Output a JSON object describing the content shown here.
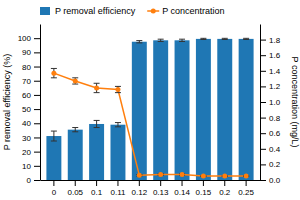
{
  "chart_data": {
    "type": "bar",
    "categories": [
      "0",
      "0.05",
      "0.1",
      "0.11",
      "0.12",
      "0.13",
      "0.14",
      "0.15",
      "0.2",
      "0.25"
    ],
    "series": [
      {
        "name": "P removal efficiency",
        "type": "bar",
        "values": [
          31,
          35.5,
          39.5,
          39,
          97.5,
          98.5,
          98.5,
          99.5,
          99.5,
          99.5
        ],
        "errors": [
          3.5,
          1.5,
          2.5,
          1.5,
          0.8,
          0.8,
          0.8,
          0.4,
          0.4,
          0.4
        ]
      },
      {
        "name": "P concentration",
        "type": "line",
        "axis": "y2",
        "marker": "circle",
        "values": [
          1.37,
          1.27,
          1.18,
          1.16,
          0.06,
          0.07,
          0.07,
          0.05,
          0.05,
          0.05
        ],
        "errors": [
          0.06,
          0.04,
          0.06,
          0.04,
          0.01,
          0.01,
          0.01,
          0.005,
          0.005,
          0.005
        ]
      }
    ],
    "ylabel": "P removal efficiency (%)",
    "y2label": "P concentration (mg/L)",
    "ylim": [
      0,
      110
    ],
    "yticks": [
      0,
      10,
      20,
      30,
      40,
      50,
      60,
      70,
      80,
      90,
      100
    ],
    "y2lim": [
      0,
      2.0
    ],
    "y2ticks": [
      {
        "value": 0,
        "label": "0.0"
      },
      0.2,
      0.4,
      0.6,
      0.8,
      {
        "value": 1,
        "label": "1.0"
      },
      1.2,
      1.4,
      1.6,
      1.8
    ],
    "legend": "top-left",
    "grid": false
  }
}
